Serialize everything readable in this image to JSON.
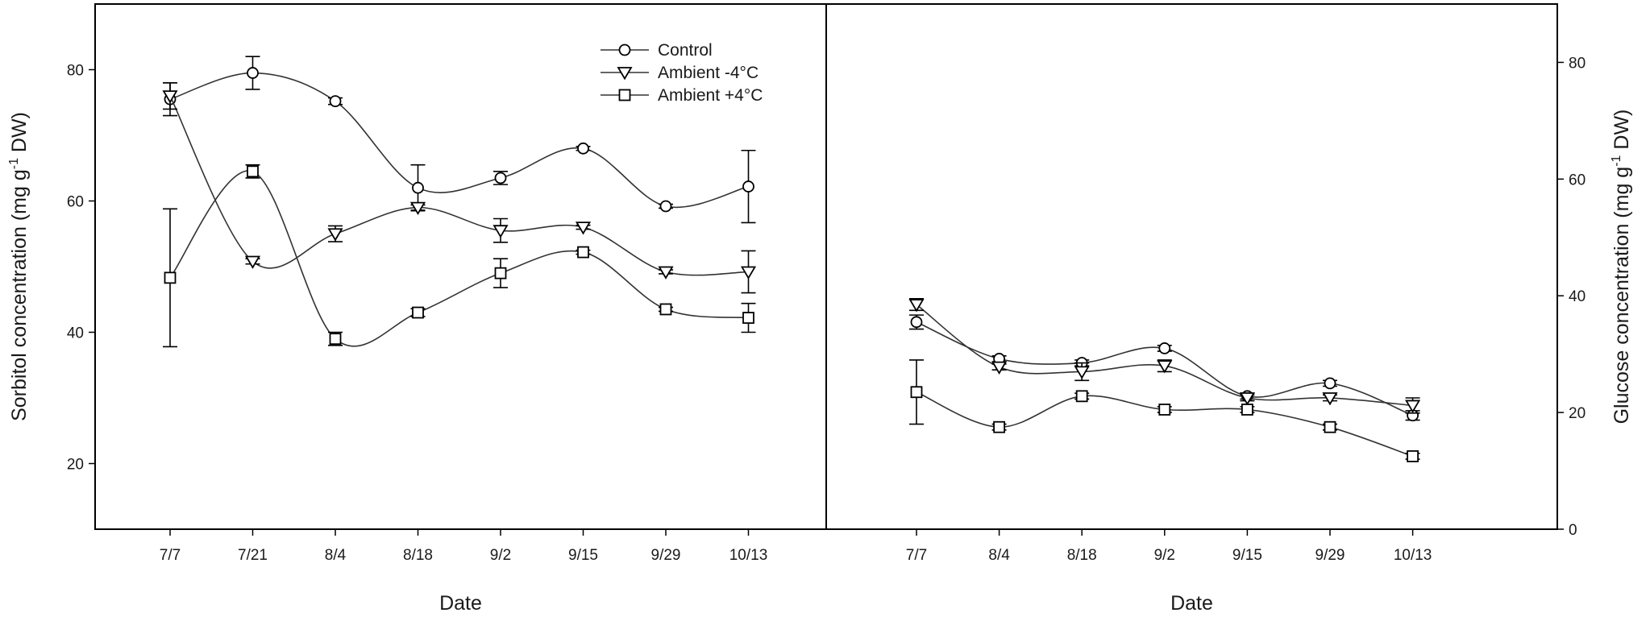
{
  "chart_data": [
    {
      "type": "line",
      "panel": "left",
      "xlabel": "Date",
      "ylabel": "Sorbitol concentration (mg g-1 DW)",
      "ylabel_parts": {
        "pre": "Sorbitol concentration (mg g",
        "sup": "-1",
        "post": " DW)"
      },
      "ylim": [
        10,
        90
      ],
      "yticks": [
        20,
        40,
        60,
        80
      ],
      "categories": [
        "7/7",
        "7/21",
        "8/4",
        "8/18",
        "9/2",
        "9/15",
        "9/29",
        "10/13"
      ],
      "series": [
        {
          "name": "Control",
          "marker": "circle",
          "values": [
            75.5,
            79.5,
            75.2,
            62,
            63.5,
            68,
            59.2,
            62.2
          ],
          "errors": [
            2.5,
            2.5,
            0.5,
            3.5,
            1,
            0.3,
            0.3,
            5.5
          ]
        },
        {
          "name": "Ambient -4°C",
          "marker": "triangle-down",
          "values": [
            76,
            50.8,
            55,
            59,
            55.5,
            56,
            49.2,
            49.2
          ],
          "errors": [
            2,
            0.4,
            1.2,
            0.4,
            1.8,
            0.3,
            0.3,
            3.2
          ]
        },
        {
          "name": "Ambient +4°C",
          "marker": "square",
          "values": [
            48.3,
            64.5,
            39,
            43,
            49,
            52.2,
            43.5,
            42.2
          ],
          "errors": [
            10.5,
            1,
            1,
            0.6,
            2.2,
            0.3,
            0.3,
            2.2
          ]
        }
      ],
      "legend": {
        "position": "top-right",
        "entries": [
          "Control",
          "Ambient -4°C",
          "Ambient +4°C"
        ]
      }
    },
    {
      "type": "line",
      "panel": "right",
      "xlabel": "Date",
      "ylabel": "Glucose concentration (mg g-1 DW)",
      "ylabel_parts": {
        "pre": "Glucose concentration (mg g",
        "sup": "-1",
        "post": " DW)"
      },
      "ylim": [
        0,
        90
      ],
      "yticks": [
        0,
        20,
        40,
        60,
        80
      ],
      "categories": [
        "7/7",
        "8/4",
        "8/18",
        "9/2",
        "9/15",
        "9/29",
        "10/13"
      ],
      "series": [
        {
          "name": "Control",
          "marker": "circle",
          "values": [
            35.5,
            29.2,
            28.5,
            31,
            22.8,
            25,
            19.5
          ],
          "errors": [
            1.2,
            0.5,
            0.5,
            0.5,
            0.5,
            0.5,
            0.8
          ]
        },
        {
          "name": "Ambient -4°C",
          "marker": "triangle-down",
          "values": [
            38.5,
            27.8,
            27,
            28,
            22.5,
            22.5,
            21.2
          ],
          "errors": [
            1,
            0.5,
            1.5,
            1,
            0.5,
            0.5,
            1.3
          ]
        },
        {
          "name": "Ambient +4°C",
          "marker": "square",
          "values": [
            23.5,
            17.5,
            22.8,
            20.5,
            20.5,
            17.5,
            12.5
          ],
          "errors": [
            5.5,
            0.5,
            0.5,
            0.5,
            0.5,
            0.5,
            0.5
          ]
        }
      ]
    }
  ]
}
